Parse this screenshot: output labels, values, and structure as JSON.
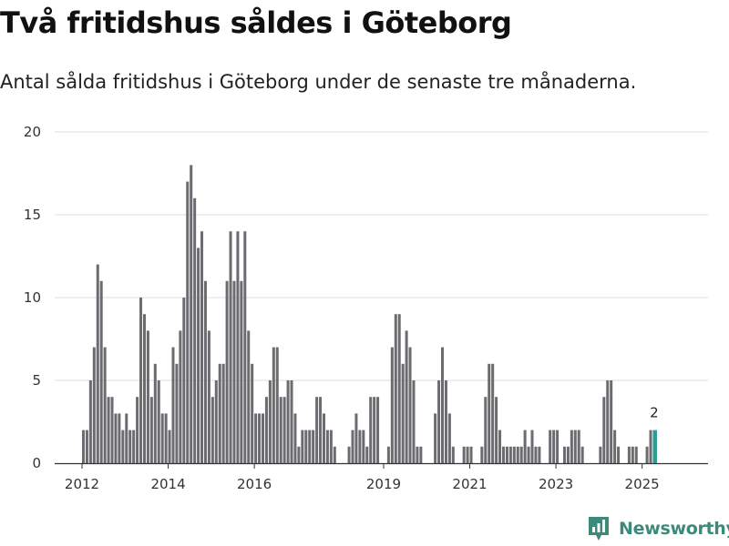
{
  "title": "Två fritidshus såldes i Göteborg",
  "subtitle": "Antal sålda fritidshus i Göteborg under de senaste tre månaderna.",
  "brand": {
    "name": "Newsworthy",
    "logo_icon": "bar-chart-icon"
  },
  "colors": {
    "bar": "#6b6b70",
    "highlight": "#2a9d94",
    "grid": "#dcdcdc",
    "axis": "#333333",
    "brand": "#3d8a7b"
  },
  "chart_data": {
    "type": "bar",
    "title": "Två fritidshus såldes i Göteborg",
    "xlabel": "",
    "ylabel": "",
    "ylim": [
      0,
      20
    ],
    "yticks": [
      0,
      5,
      10,
      15,
      20
    ],
    "start": "2012-01",
    "xticks": [
      {
        "label": "2012",
        "index": 0
      },
      {
        "label": "2014",
        "index": 24
      },
      {
        "label": "2016",
        "index": 48
      },
      {
        "label": "2019",
        "index": 84
      },
      {
        "label": "2021",
        "index": 108
      },
      {
        "label": "2023",
        "index": 132
      },
      {
        "label": "2025",
        "index": 156
      }
    ],
    "values": [
      2,
      2,
      5,
      7,
      12,
      11,
      7,
      4,
      4,
      3,
      3,
      2,
      3,
      2,
      2,
      4,
      10,
      9,
      8,
      4,
      6,
      5,
      3,
      3,
      2,
      7,
      6,
      8,
      10,
      17,
      18,
      16,
      13,
      14,
      11,
      8,
      4,
      5,
      6,
      6,
      11,
      14,
      11,
      14,
      11,
      14,
      8,
      6,
      3,
      3,
      3,
      4,
      5,
      7,
      7,
      4,
      4,
      5,
      5,
      3,
      1,
      2,
      2,
      2,
      2,
      4,
      4,
      3,
      2,
      2,
      1,
      0,
      0,
      0,
      1,
      2,
      3,
      2,
      2,
      1,
      4,
      4,
      4,
      0,
      0,
      1,
      7,
      9,
      9,
      6,
      8,
      7,
      5,
      1,
      1,
      0,
      0,
      0,
      3,
      5,
      7,
      5,
      3,
      1,
      0,
      0,
      1,
      1,
      1,
      0,
      0,
      1,
      4,
      6,
      6,
      4,
      2,
      1,
      1,
      1,
      1,
      1,
      1,
      2,
      1,
      2,
      1,
      1,
      0,
      0,
      2,
      2,
      2,
      0,
      1,
      1,
      2,
      2,
      2,
      1,
      0,
      0,
      0,
      0,
      1,
      4,
      5,
      5,
      2,
      1,
      0,
      0,
      1,
      1,
      1,
      0,
      0,
      1,
      2,
      2
    ],
    "highlight_last": true,
    "annotations": [
      {
        "index": 159,
        "text": "2"
      }
    ]
  }
}
